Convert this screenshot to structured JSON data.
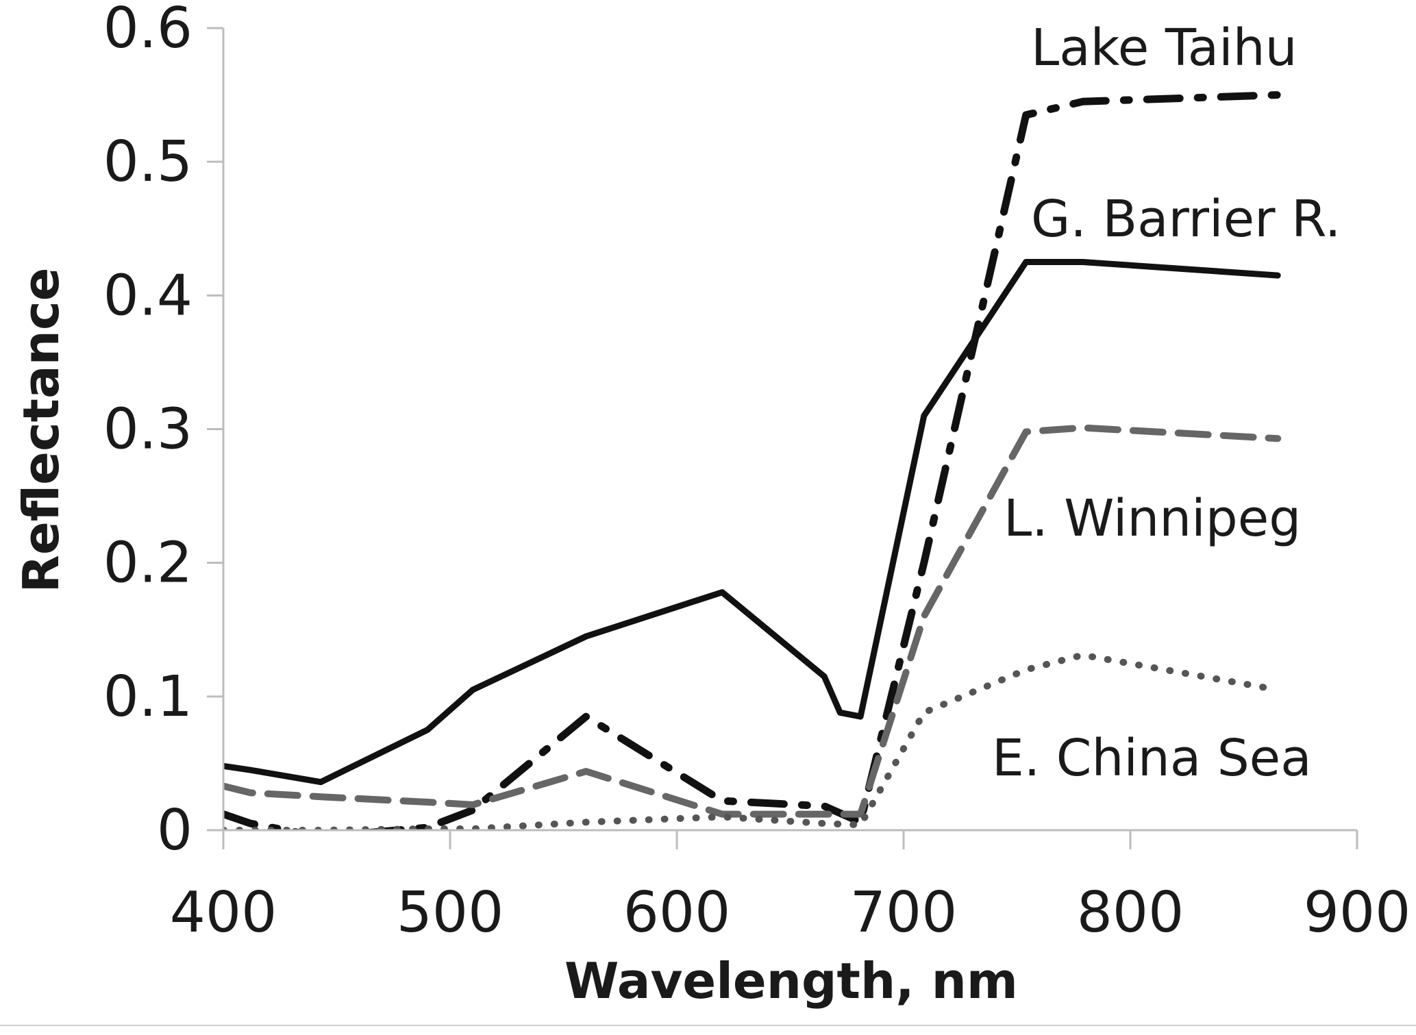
{
  "chart_data": {
    "type": "line",
    "title": "",
    "xlabel": "Wavelength, nm",
    "ylabel": "Reflectance",
    "xlim": [
      400,
      900
    ],
    "ylim": [
      0,
      0.6
    ],
    "xticks": [
      400,
      500,
      600,
      700,
      800,
      900
    ],
    "yticks": [
      0,
      0.1,
      0.2,
      0.3,
      0.4,
      0.5,
      0.6
    ],
    "ytick_labels": [
      "0",
      "0.1",
      "0.2",
      "0.3",
      "0.4",
      "0.5",
      "0.6"
    ],
    "grid": false,
    "legend": "inline labels",
    "series": [
      {
        "name": "Lake Taihu",
        "style": "dash-dot",
        "color": "#111111",
        "x": [
          400,
          412,
          443,
          490,
          510,
          560,
          620,
          665,
          681,
          709,
          754,
          779,
          865
        ],
        "y": [
          0.012,
          0.005,
          -0.005,
          0.002,
          0.015,
          0.085,
          0.022,
          0.018,
          0.006,
          0.2,
          0.535,
          0.545,
          0.55
        ]
      },
      {
        "name": "G. Barrier R.",
        "style": "solid",
        "color": "#111111",
        "x": [
          400,
          412,
          443,
          490,
          510,
          560,
          620,
          665,
          672,
          681,
          709,
          754,
          779,
          865
        ],
        "y": [
          0.048,
          0.045,
          0.036,
          0.075,
          0.105,
          0.145,
          0.178,
          0.115,
          0.088,
          0.085,
          0.31,
          0.425,
          0.425,
          0.415
        ]
      },
      {
        "name": "L. Winnipeg",
        "style": "dashed",
        "color": "#666666",
        "x": [
          400,
          412,
          443,
          490,
          510,
          560,
          620,
          665,
          681,
          709,
          754,
          779,
          865
        ],
        "y": [
          0.033,
          0.028,
          0.025,
          0.021,
          0.019,
          0.044,
          0.012,
          0.012,
          0.012,
          0.16,
          0.298,
          0.301,
          0.293
        ]
      },
      {
        "name": "E. China Sea",
        "style": "dotted",
        "color": "#555555",
        "x": [
          400,
          412,
          443,
          490,
          510,
          560,
          620,
          665,
          681,
          709,
          754,
          779,
          865
        ],
        "y": [
          0.0,
          0.0,
          0.0,
          0.001,
          0.001,
          0.006,
          0.01,
          0.005,
          0.004,
          0.088,
          0.12,
          0.131,
          0.105
        ]
      }
    ]
  }
}
